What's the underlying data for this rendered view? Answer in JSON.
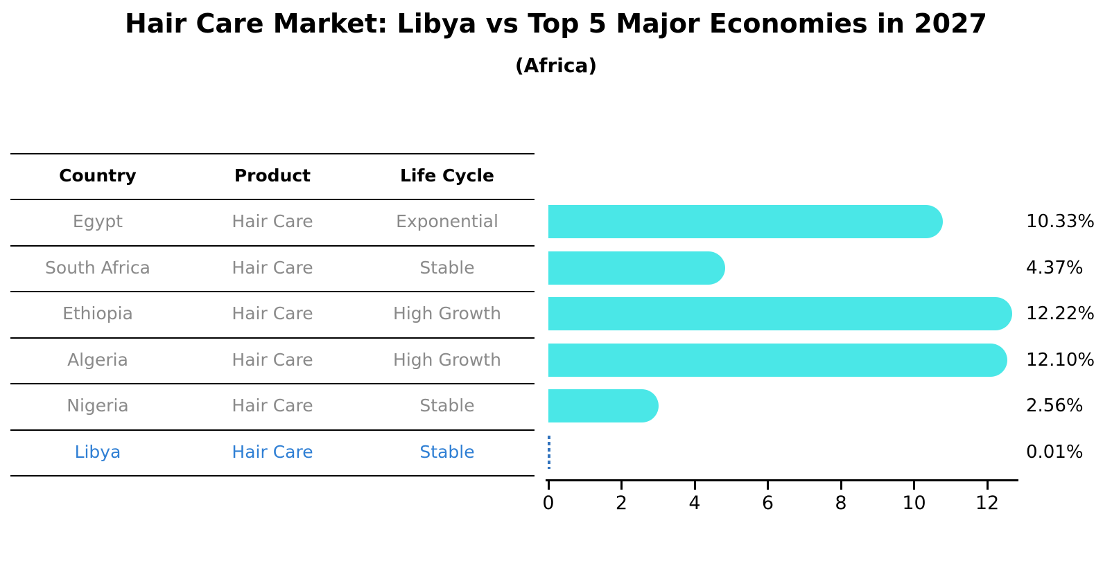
{
  "title": "Hair Care Market: Libya vs Top 5 Major Economies in 2027",
  "subtitle": "(Africa)",
  "table": {
    "headers": [
      "Country",
      "Product",
      "Life Cycle"
    ]
  },
  "chart_data": {
    "type": "bar",
    "orientation": "horizontal",
    "title": "Hair Care Market: Libya vs Top 5 Major Economies in 2027",
    "subtitle": "(Africa)",
    "categories": [
      "Egypt",
      "South Africa",
      "Ethiopia",
      "Algeria",
      "Nigeria",
      "Libya"
    ],
    "values": [
      10.33,
      4.37,
      12.22,
      12.1,
      2.56,
      0.01
    ],
    "value_labels": [
      "10.33%",
      "4.37%",
      "12.22%",
      "12.10%",
      "2.56%",
      "0.01%"
    ],
    "rows": [
      {
        "country": "Egypt",
        "product": "Hair Care",
        "life_cycle": "Exponential",
        "value": 10.33,
        "label": "10.33%",
        "highlighted": false
      },
      {
        "country": "South Africa",
        "product": "Hair Care",
        "life_cycle": "Stable",
        "value": 4.37,
        "label": "4.37%",
        "highlighted": false
      },
      {
        "country": "Ethiopia",
        "product": "Hair Care",
        "life_cycle": "High Growth",
        "value": 12.22,
        "label": "12.22%",
        "highlighted": false
      },
      {
        "country": "Algeria",
        "product": "Hair Care",
        "life_cycle": "High Growth",
        "value": 12.1,
        "label": "12.10%",
        "highlighted": false
      },
      {
        "country": "Nigeria",
        "product": "Hair Care",
        "life_cycle": "Stable",
        "value": 2.56,
        "label": "2.56%",
        "highlighted": false
      },
      {
        "country": "Libya",
        "product": "Hair Care",
        "life_cycle": "Stable",
        "value": 0.01,
        "label": "0.01%",
        "highlighted": true
      }
    ],
    "x_ticks": [
      0,
      2,
      4,
      6,
      8,
      10,
      12
    ],
    "xlim": [
      0,
      12.85
    ],
    "grid": false,
    "legend": "none",
    "bar_color": "#4AE7E7",
    "highlight_text_color": "#2F7FD4",
    "highlight_marker_color": "#3273BD",
    "muted_text_color": "#8A8A8A",
    "axis_color": "#000000"
  }
}
